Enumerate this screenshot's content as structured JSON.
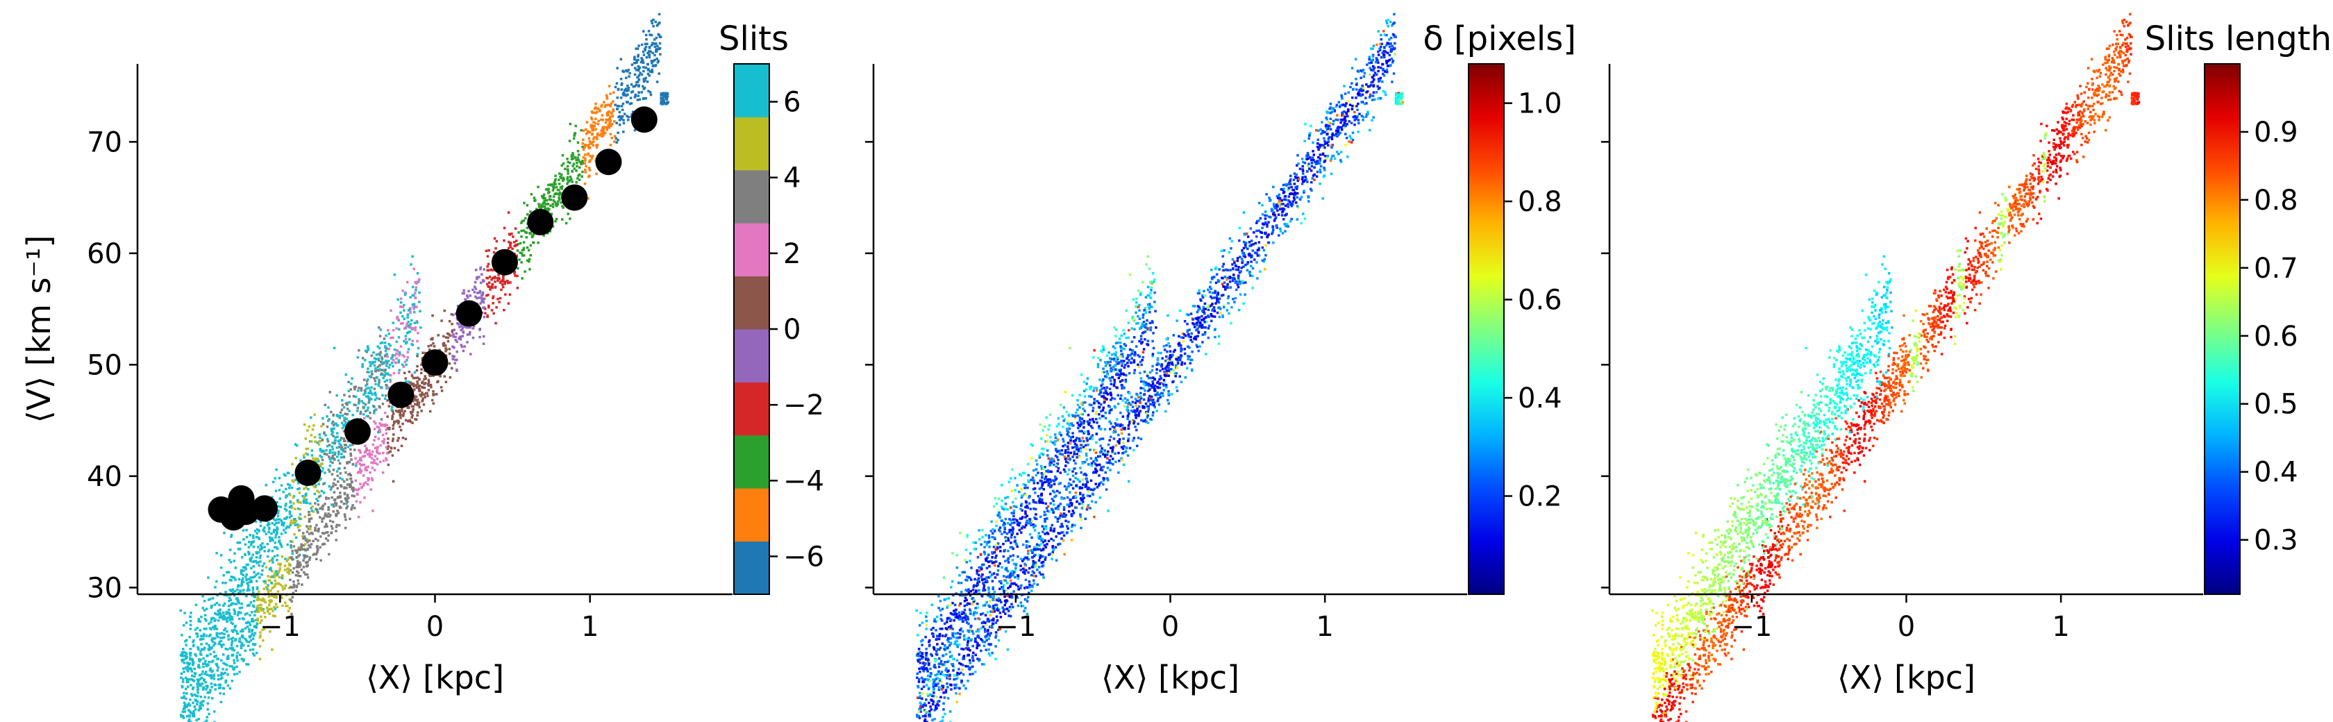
{
  "chart_data": [
    {
      "type": "scatter",
      "panel": "left",
      "xlabel": "⟨X⟩ [kpc]",
      "ylabel": "⟨V⟩ [km s⁻¹]",
      "xlim": [
        -1.92,
        1.92
      ],
      "ylim": [
        29.4,
        77.0
      ],
      "x_ticks": [
        -1,
        0,
        1
      ],
      "x_tick_labels": [
        "−1",
        "0",
        "1"
      ],
      "y_ticks": [
        30,
        40,
        50,
        60,
        70
      ],
      "y_tick_labels": [
        "30",
        "40",
        "50",
        "60",
        "70"
      ],
      "color_by": "slit index",
      "colorbar": {
        "title": "Slits",
        "type": "discrete",
        "range": [
          -7,
          7
        ],
        "ticks": [
          -6,
          -4,
          -2,
          0,
          2,
          4,
          6
        ],
        "tick_labels": [
          "−6",
          "−4",
          "−2",
          "0",
          "2",
          "4",
          "6"
        ],
        "colors": [
          "#1f77b4",
          "#ff7f0e",
          "#2ca02c",
          "#d62728",
          "#9467bd",
          "#8c564b",
          "#e377c2",
          "#7f7f7f",
          "#bcbd22",
          "#17becf"
        ]
      },
      "slit_centers": {
        "x": [
          1.35,
          1.12,
          0.9,
          0.68,
          0.45,
          0.22,
          0.0,
          -0.22,
          -0.5,
          -0.82,
          -1.1,
          -1.22,
          -1.25,
          -1.3,
          -1.38
        ],
        "y": [
          72.0,
          68.2,
          65.0,
          62.8,
          59.2,
          54.6,
          50.2,
          47.3,
          44.0,
          40.3,
          37.1,
          36.8,
          38.0,
          36.3,
          37.0
        ]
      }
    },
    {
      "type": "scatter",
      "panel": "middle",
      "xlabel": "⟨X⟩ [kpc]",
      "xlim": [
        -1.92,
        1.92
      ],
      "ylim": [
        29.4,
        77.0
      ],
      "x_ticks": [
        -1,
        0,
        1
      ],
      "x_tick_labels": [
        "−1",
        "0",
        "1"
      ],
      "y_ticks": [
        30,
        40,
        50,
        60,
        70
      ],
      "color_by": "δ",
      "colorbar": {
        "title": "δ [pixels]",
        "type": "continuous",
        "colormap": "jet",
        "range": [
          0.0,
          1.08
        ],
        "ticks": [
          0.2,
          0.4,
          0.6,
          0.8,
          1.0
        ],
        "tick_labels": [
          "0.2",
          "0.4",
          "0.6",
          "0.8",
          "1.0"
        ]
      }
    },
    {
      "type": "scatter",
      "panel": "right",
      "xlabel": "⟨X⟩ [kpc]",
      "xlim": [
        -1.92,
        1.92
      ],
      "ylim": [
        29.4,
        77.0
      ],
      "x_ticks": [
        -1,
        0,
        1
      ],
      "x_tick_labels": [
        "−1",
        "0",
        "1"
      ],
      "y_ticks": [
        30,
        40,
        50,
        60,
        70
      ],
      "color_by": "slit length",
      "colorbar": {
        "title": "Slits length",
        "type": "continuous",
        "colormap": "jet",
        "range": [
          0.22,
          1.0
        ],
        "ticks": [
          0.3,
          0.4,
          0.5,
          0.6,
          0.7,
          0.8,
          0.9
        ],
        "tick_labels": [
          "0.3",
          "0.4",
          "0.5",
          "0.6",
          "0.7",
          "0.8",
          "0.9"
        ]
      }
    }
  ]
}
